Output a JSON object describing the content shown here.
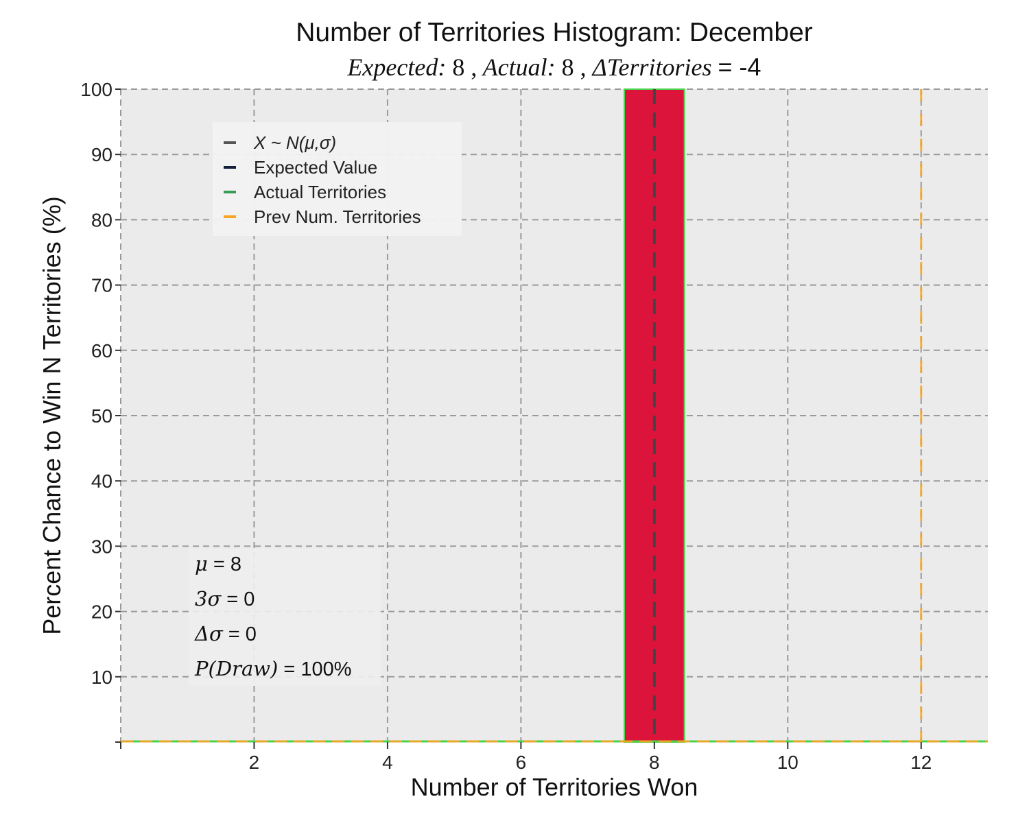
{
  "chart_data": {
    "type": "bar",
    "title": "Number of Territories Histogram: December",
    "subtitle": {
      "expected_label": "Expected:",
      "expected_value": "8",
      "actual_label": "Actual:",
      "actual_value": "8",
      "delta_label": "ΔTerritories",
      "delta_value": "= -4",
      "separator": ","
    },
    "xlabel": "Number of Territories Won",
    "ylabel": "Percent Chance to Win N Territories (%)",
    "xlim": [
      0,
      13
    ],
    "ylim": [
      0,
      100
    ],
    "xticks": [
      2,
      4,
      6,
      8,
      10,
      12
    ],
    "yticks": [
      10,
      20,
      30,
      40,
      50,
      60,
      70,
      80,
      90,
      100
    ],
    "grid": true,
    "bars": [
      {
        "x": 8,
        "width": 0.9,
        "value": 100,
        "color": "#DC143C",
        "edgecolor": "#4CD24C"
      }
    ],
    "vlines": [
      {
        "name": "Expected Value",
        "x": 8,
        "color": "#444444"
      },
      {
        "name": "Prev Num. Territories",
        "x": 12,
        "color": "#F5A623"
      }
    ],
    "baseline_lines": [
      {
        "name": "Actual Territories",
        "y": 0,
        "color": "#4CD24C"
      },
      {
        "name": "Prev Num. Territories",
        "y": 0,
        "color": "#F5A623"
      }
    ],
    "legend": {
      "position": "upper-left",
      "entries": [
        {
          "label": "X ~ N(μ,σ)",
          "color": "#555555",
          "italic": true
        },
        {
          "label": "Expected Value",
          "color": "#14213D",
          "italic": false
        },
        {
          "label": "Actual Territories",
          "color": "#3A9A5A",
          "italic": false
        },
        {
          "label": "Prev Num. Territories",
          "color": "#F5A623",
          "italic": false
        }
      ]
    },
    "stats": {
      "position": "lower-left",
      "lines": [
        {
          "symbol": "μ",
          "text": " = 8"
        },
        {
          "symbol": "3σ",
          "text": " = 0"
        },
        {
          "symbol": "Δσ",
          "text": " = 0"
        },
        {
          "symbol": "P(Draw)",
          "text": " = 100%"
        }
      ]
    },
    "colors": {
      "plot_background": "#EBEBEB",
      "grid": "#9A9A9A"
    }
  }
}
